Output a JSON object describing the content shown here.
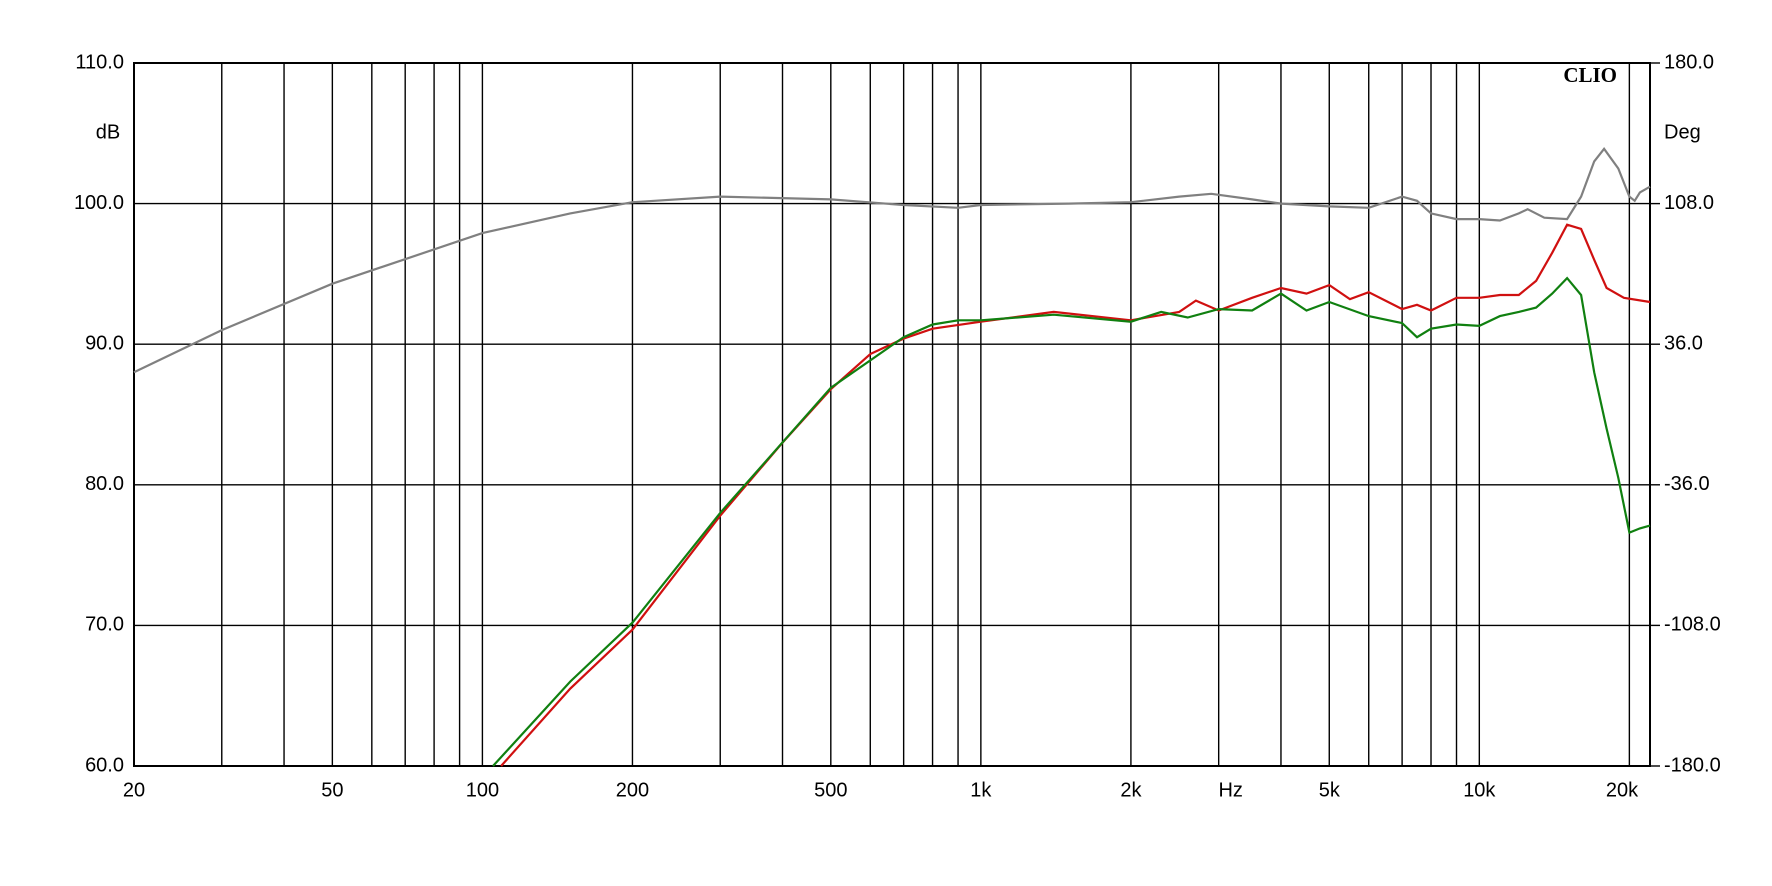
{
  "chart_data": {
    "type": "line",
    "annotation": "CLIO",
    "xlabel": "Hz",
    "ylabel": "dB",
    "y2label": "Deg",
    "xscale": "log",
    "xlim": [
      20,
      22000
    ],
    "xticks": [
      {
        "value": 20,
        "label": "20"
      },
      {
        "value": 50,
        "label": "50"
      },
      {
        "value": 100,
        "label": "100"
      },
      {
        "value": 200,
        "label": "200"
      },
      {
        "value": 500,
        "label": "500"
      },
      {
        "value": 1000,
        "label": "1k"
      },
      {
        "value": 2000,
        "label": "2k"
      },
      {
        "value": 5000,
        "label": "5k"
      },
      {
        "value": 10000,
        "label": "10k"
      },
      {
        "value": 20000,
        "label": "20k"
      }
    ],
    "xminor": [
      30,
      40,
      60,
      70,
      80,
      90,
      300,
      400,
      600,
      700,
      800,
      900,
      3000,
      4000,
      6000,
      7000,
      8000,
      9000
    ],
    "ylim": [
      60,
      110
    ],
    "yticks": [
      {
        "value": 60,
        "label": "60.0"
      },
      {
        "value": 70,
        "label": "70.0"
      },
      {
        "value": 80,
        "label": "80.0"
      },
      {
        "value": 90,
        "label": "90.0"
      },
      {
        "value": 100,
        "label": "100.0"
      },
      {
        "value": 110,
        "label": "110.0"
      }
    ],
    "y2lim": [
      -180,
      180
    ],
    "y2ticks": [
      {
        "value": -180,
        "label": "-180.0"
      },
      {
        "value": -108,
        "label": "-108.0"
      },
      {
        "value": -36,
        "label": "-36.0"
      },
      {
        "value": 36,
        "label": "36.0"
      },
      {
        "value": 108,
        "label": "108.0"
      },
      {
        "value": 180,
        "label": "180.0"
      }
    ],
    "grid": true,
    "series": [
      {
        "color": "#808080",
        "x": [
          20,
          30,
          50,
          100,
          150,
          200,
          300,
          500,
          700,
          900,
          1000,
          1500,
          2000,
          2500,
          2900,
          3500,
          4000,
          5000,
          6000,
          7000,
          7500,
          8000,
          9000,
          10000,
          11000,
          12000,
          12500,
          13500,
          15000,
          16000,
          17000,
          17800,
          19000,
          20000,
          20500,
          21000,
          22000
        ],
        "values": [
          88.0,
          91.0,
          94.3,
          97.9,
          99.3,
          100.1,
          100.5,
          100.3,
          99.9,
          99.7,
          99.9,
          100.0,
          100.1,
          100.5,
          100.7,
          100.3,
          100.0,
          99.8,
          99.7,
          100.5,
          100.2,
          99.3,
          98.9,
          98.9,
          98.8,
          99.3,
          99.6,
          99.0,
          98.9,
          100.5,
          103.0,
          103.9,
          102.5,
          100.5,
          100.2,
          100.8,
          101.2
        ]
      },
      {
        "color": "#d01010",
        "x": [
          109,
          150,
          200,
          300,
          400,
          500,
          600,
          700,
          800,
          1000,
          1400,
          2000,
          2500,
          2700,
          3000,
          3500,
          4000,
          4500,
          5000,
          5500,
          6000,
          7000,
          7500,
          8000,
          9000,
          10000,
          11000,
          12000,
          13000,
          14000,
          15000,
          16000,
          17000,
          18000,
          19500,
          22000
        ],
        "values": [
          60.0,
          65.5,
          69.7,
          77.8,
          83.0,
          86.8,
          89.3,
          90.4,
          91.1,
          91.6,
          92.3,
          91.7,
          92.3,
          93.1,
          92.4,
          93.3,
          94.0,
          93.6,
          94.2,
          93.2,
          93.7,
          92.5,
          92.8,
          92.4,
          93.3,
          93.3,
          93.5,
          93.5,
          94.5,
          96.5,
          98.5,
          98.2,
          96.0,
          94.0,
          93.3,
          93.0
        ]
      },
      {
        "color": "#108010",
        "x": [
          105,
          150,
          200,
          300,
          500,
          700,
          800,
          900,
          1000,
          1400,
          2000,
          2300,
          2600,
          3000,
          3500,
          4000,
          4500,
          5000,
          6000,
          7000,
          7500,
          8000,
          9000,
          10000,
          11000,
          12000,
          13000,
          14000,
          15000,
          16000,
          17000,
          18000,
          19000,
          20000,
          21000,
          22000
        ],
        "values": [
          60.0,
          66.0,
          70.2,
          78.0,
          86.9,
          90.5,
          91.4,
          91.7,
          91.7,
          92.1,
          91.6,
          92.3,
          91.9,
          92.5,
          92.4,
          93.6,
          92.4,
          93.0,
          92.0,
          91.5,
          90.5,
          91.1,
          91.4,
          91.3,
          92.0,
          92.3,
          92.6,
          93.6,
          94.7,
          93.5,
          88.0,
          84.0,
          80.5,
          76.6,
          76.9,
          77.1
        ]
      }
    ]
  }
}
